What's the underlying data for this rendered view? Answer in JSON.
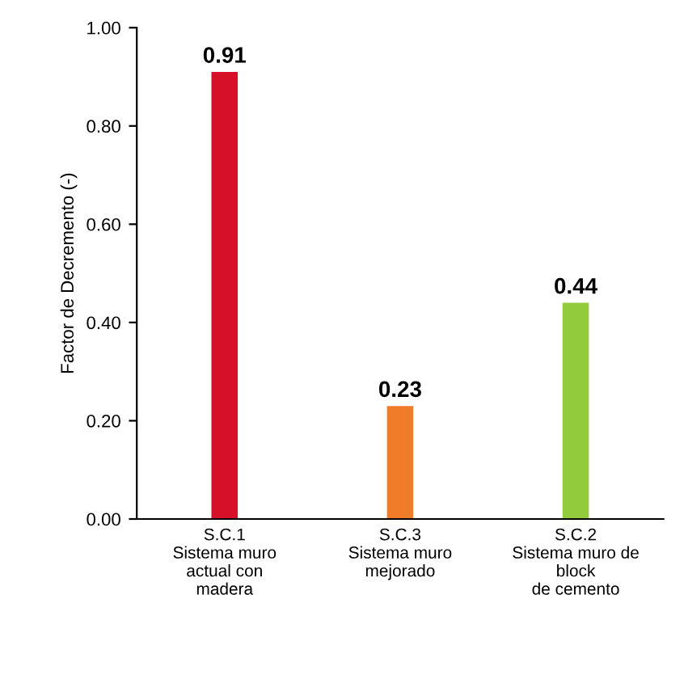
{
  "chart_data": {
    "type": "bar",
    "ylabel": "Factor de Decremento (-)",
    "categories": [
      "S.C.1\nSistema muro\nactual con\nmadera",
      "S.C.3\nSistema muro\nmejorado",
      "S.C.2\nSistema muro de\nblock\nde cemento"
    ],
    "values": [
      0.91,
      0.23,
      0.44
    ],
    "colors": [
      "#d7102a",
      "#f07c2a",
      "#92cc3c"
    ],
    "ylim": [
      0,
      1
    ],
    "yticks": [
      {
        "value": 0,
        "label": "0.00"
      },
      {
        "value": 0.2,
        "label": "0.20"
      },
      {
        "value": 0.4,
        "label": "0.40"
      },
      {
        "value": 0.6,
        "label": "0.60"
      },
      {
        "value": 0.8,
        "label": "0.80"
      },
      {
        "value": 1,
        "label": "1.00"
      }
    ],
    "data_labels": true,
    "grid": false,
    "legend": false
  }
}
